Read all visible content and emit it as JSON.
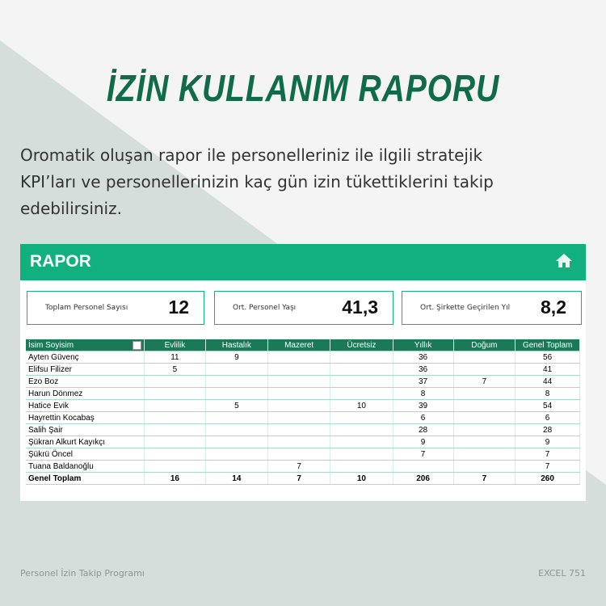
{
  "title": "İZİN KULLANIM RAPORU",
  "description": [
    "Oromatik oluşan rapor ile personelleriniz ile ilgili stratejik",
    "KPI’ları ve personellerinizin kaç gün izin tükettiklerini takip",
    "edebilirsiniz."
  ],
  "report": {
    "title": "RAPOR",
    "kpis": [
      {
        "label": "Toplam Personel Sayısı",
        "value": 12
      },
      {
        "label": "Ort. Personel Yaşı",
        "value": "41,3"
      },
      {
        "label": "Ort. Şirkette Geçirilen Yıl",
        "value": "8,2"
      }
    ],
    "table": {
      "columns": [
        "İsim Soyisim",
        "Evlilik",
        "Hastalık",
        "Mazeret",
        "Ücretsiz",
        "Yıllık",
        "Doğum",
        "Genel Toplam"
      ],
      "rows": [
        [
          "Ayten Güvenç",
          11,
          9,
          null,
          null,
          36,
          null,
          56
        ],
        [
          "Elifsu Filizer",
          5,
          null,
          null,
          null,
          36,
          null,
          41
        ],
        [
          "Ezo Boz",
          null,
          null,
          null,
          null,
          37,
          7,
          44
        ],
        [
          "Harun Dönmez",
          null,
          null,
          null,
          null,
          8,
          null,
          8
        ],
        [
          "Hatice Evik",
          null,
          5,
          null,
          10,
          39,
          null,
          54
        ],
        [
          "Hayrettin Kocabaş",
          null,
          null,
          null,
          null,
          6,
          null,
          6
        ],
        [
          "Salih Şair",
          null,
          null,
          null,
          null,
          28,
          null,
          28
        ],
        [
          "Şükran Alkurt Kayıkçı",
          null,
          null,
          null,
          null,
          9,
          null,
          9
        ],
        [
          "Şükrü Öncel",
          null,
          null,
          null,
          null,
          7,
          null,
          7
        ],
        [
          "Tuana Baldanoğlu",
          null,
          null,
          7,
          null,
          null,
          null,
          7
        ]
      ],
      "total": [
        "Genel Toplam",
        16,
        14,
        7,
        10,
        206,
        7,
        260
      ]
    }
  },
  "footer": {
    "left": "Personel İzin Takip Programı",
    "right": "EXCEL 751"
  }
}
